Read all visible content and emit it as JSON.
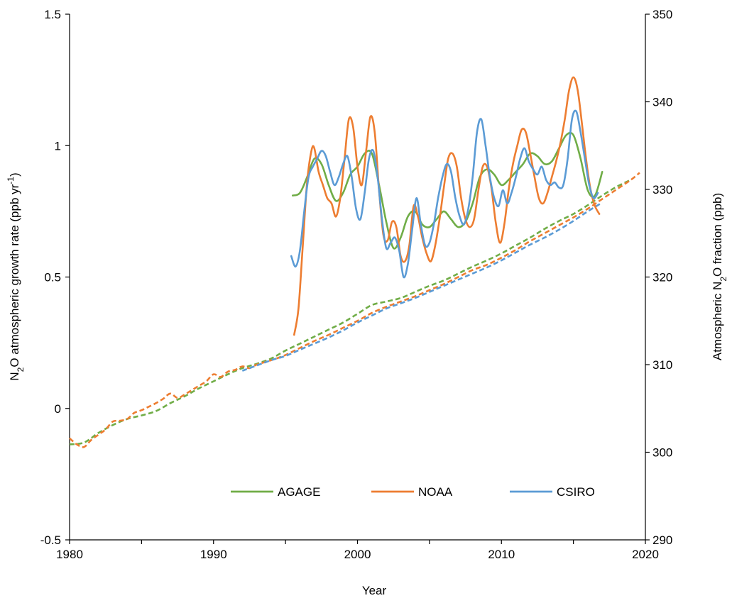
{
  "chart_data": {
    "type": "line",
    "xlabel": "Year",
    "ylabel_left": {
      "pre": "N",
      "sub": "2",
      "mid": "O atmospheric growth rate (ppb yr",
      "sup": "-1",
      "post": ")"
    },
    "ylabel_right": {
      "pre": "Atmospheric N",
      "sub": "2",
      "post": "O fraction (ppb)"
    },
    "xlim": [
      1980,
      2020
    ],
    "ylim_left": [
      -0.5,
      1.5
    ],
    "ylim_right": [
      290,
      350
    ],
    "xticks": [
      "1980",
      "1990",
      "2000",
      "2010",
      "2020"
    ],
    "yticks_left": [
      "-0.5",
      "0",
      "0.5",
      "1",
      "1.5"
    ],
    "yticks_right": [
      "290",
      "300",
      "310",
      "320",
      "330",
      "340",
      "350"
    ],
    "grid": false,
    "legend_position": "bottom-center",
    "legend": [
      "AGAGE",
      "NOAA",
      "CSIRO"
    ],
    "colors": {
      "AGAGE": "#70ad47",
      "NOAA": "#ed7d31",
      "CSIRO": "#5b9bd5"
    },
    "series": [
      {
        "name": "AGAGE",
        "kind": "growth rate (solid, left axis)",
        "x": [
          1995.5,
          1996,
          1996.5,
          1997,
          1997.5,
          1998,
          1998.5,
          1999,
          1999.5,
          2000,
          2000.5,
          2001,
          2001.5,
          2002,
          2002.5,
          2003,
          2003.5,
          2004,
          2004.5,
          2005,
          2005.5,
          2006,
          2006.5,
          2007,
          2007.5,
          2008,
          2008.5,
          2009,
          2009.5,
          2010,
          2010.5,
          2011,
          2011.5,
          2012,
          2012.5,
          2013,
          2013.5,
          2014,
          2014.5,
          2015,
          2015.5,
          2016,
          2016.5,
          2017
        ],
        "y": [
          0.81,
          0.82,
          0.88,
          0.95,
          0.93,
          0.85,
          0.79,
          0.82,
          0.89,
          0.92,
          0.97,
          0.97,
          0.85,
          0.71,
          0.61,
          0.65,
          0.73,
          0.75,
          0.7,
          0.69,
          0.72,
          0.75,
          0.72,
          0.69,
          0.71,
          0.78,
          0.88,
          0.91,
          0.89,
          0.85,
          0.87,
          0.9,
          0.93,
          0.97,
          0.96,
          0.93,
          0.94,
          0.99,
          1.04,
          1.04,
          0.95,
          0.83,
          0.81,
          0.9
        ]
      },
      {
        "name": "NOAA",
        "kind": "growth rate (solid, left axis)",
        "x": [
          1995.6,
          1995.9,
          1996.2,
          1996.5,
          1996.8,
          1997,
          1997.3,
          1997.6,
          1997.9,
          1998.2,
          1998.5,
          1998.8,
          1999.1,
          1999.4,
          1999.7,
          2000,
          2000.3,
          2000.6,
          2000.9,
          2001.2,
          2001.5,
          2001.8,
          2002.1,
          2002.4,
          2002.7,
          2003,
          2003.3,
          2003.6,
          2003.9,
          2004.2,
          2004.5,
          2004.8,
          2005.1,
          2005.4,
          2005.7,
          2006,
          2006.3,
          2006.6,
          2006.9,
          2007.2,
          2007.5,
          2007.8,
          2008.1,
          2008.4,
          2008.7,
          2009,
          2009.3,
          2009.6,
          2009.9,
          2010.2,
          2010.5,
          2010.8,
          2011.1,
          2011.4,
          2011.7,
          2012,
          2012.3,
          2012.6,
          2012.9,
          2013.2,
          2013.5,
          2013.8,
          2014.1,
          2014.4,
          2014.7,
          2015,
          2015.3,
          2015.6,
          2015.9,
          2016.2,
          2016.5,
          2016.8
        ],
        "y": [
          0.28,
          0.38,
          0.62,
          0.86,
          0.98,
          0.99,
          0.9,
          0.85,
          0.8,
          0.78,
          0.73,
          0.8,
          0.95,
          1.1,
          1.07,
          0.92,
          0.85,
          0.98,
          1.11,
          1.05,
          0.83,
          0.66,
          0.64,
          0.71,
          0.69,
          0.58,
          0.56,
          0.62,
          0.77,
          0.73,
          0.65,
          0.59,
          0.56,
          0.62,
          0.72,
          0.84,
          0.95,
          0.97,
          0.92,
          0.8,
          0.72,
          0.69,
          0.72,
          0.83,
          0.92,
          0.92,
          0.84,
          0.71,
          0.63,
          0.7,
          0.83,
          0.93,
          1.0,
          1.06,
          1.05,
          0.97,
          0.88,
          0.8,
          0.78,
          0.82,
          0.88,
          0.94,
          1.01,
          1.1,
          1.21,
          1.26,
          1.21,
          1.08,
          0.94,
          0.83,
          0.77,
          0.74
        ]
      },
      {
        "name": "CSIRO",
        "kind": "growth rate (solid, left axis)",
        "x": [
          1995.4,
          1995.7,
          1996,
          1996.3,
          1996.6,
          1996.9,
          1997.2,
          1997.5,
          1997.8,
          1998.1,
          1998.4,
          1998.7,
          1999,
          1999.3,
          1999.6,
          1999.9,
          2000.2,
          2000.5,
          2000.8,
          2001.1,
          2001.4,
          2001.7,
          2002,
          2002.3,
          2002.6,
          2002.9,
          2003.2,
          2003.5,
          2003.8,
          2004.1,
          2004.4,
          2004.7,
          2005,
          2005.3,
          2005.6,
          2005.9,
          2006.2,
          2006.5,
          2006.8,
          2007.1,
          2007.4,
          2007.7,
          2008,
          2008.3,
          2008.6,
          2008.9,
          2009.2,
          2009.5,
          2009.8,
          2010.1,
          2010.4,
          2010.7,
          2011,
          2011.3,
          2011.6,
          2011.9,
          2012.2,
          2012.5,
          2012.8,
          2013.1,
          2013.4,
          2013.7,
          2014,
          2014.3,
          2014.6,
          2014.9,
          2015.2,
          2015.5,
          2015.8,
          2016.1,
          2016.4,
          2016.7
        ],
        "y": [
          0.58,
          0.54,
          0.6,
          0.75,
          0.88,
          0.92,
          0.95,
          0.98,
          0.96,
          0.9,
          0.85,
          0.88,
          0.93,
          0.96,
          0.88,
          0.76,
          0.72,
          0.82,
          0.95,
          0.98,
          0.88,
          0.72,
          0.61,
          0.63,
          0.65,
          0.6,
          0.5,
          0.55,
          0.68,
          0.8,
          0.7,
          0.62,
          0.63,
          0.7,
          0.8,
          0.88,
          0.93,
          0.9,
          0.8,
          0.73,
          0.7,
          0.76,
          0.88,
          1.05,
          1.1,
          1.0,
          0.88,
          0.8,
          0.77,
          0.83,
          0.78,
          0.82,
          0.88,
          0.95,
          0.99,
          0.94,
          0.91,
          0.89,
          0.92,
          0.87,
          0.85,
          0.86,
          0.84,
          0.85,
          0.95,
          1.1,
          1.13,
          1.05,
          0.95,
          0.85,
          0.8,
          0.82
        ]
      },
      {
        "name": "AGAGE",
        "kind": "mole fraction (dashed, right axis)",
        "x": [
          1980,
          1981,
          1982,
          1983,
          1984,
          1985,
          1986,
          1987,
          1988,
          1989,
          1990,
          1991,
          1992,
          1993,
          1994,
          1995,
          1996,
          1997,
          1998,
          1999,
          2000,
          2001,
          2002,
          2003,
          2004,
          2005,
          2006,
          2007,
          2008,
          2009,
          2010,
          2011,
          2012,
          2013,
          2014,
          2015,
          2016,
          2017,
          2018,
          2019
        ],
        "y": [
          300.9,
          301.1,
          302.2,
          303.1,
          303.8,
          304.2,
          304.7,
          305.6,
          306.4,
          307.3,
          308.1,
          308.9,
          309.6,
          310.1,
          310.7,
          311.6,
          312.4,
          313.2,
          314.0,
          314.8,
          315.8,
          316.8,
          317.2,
          317.6,
          318.3,
          319.0,
          319.6,
          320.4,
          321.2,
          321.9,
          322.7,
          323.6,
          324.5,
          325.5,
          326.4,
          327.2,
          328.2,
          329.3,
          330.3,
          331.1
        ]
      },
      {
        "name": "NOAA",
        "kind": "mole fraction (dashed, right axis)",
        "x": [
          1980,
          1980.5,
          1981,
          1981.5,
          1982,
          1982.5,
          1983,
          1983.5,
          1984,
          1984.5,
          1985,
          1985.5,
          1986,
          1986.5,
          1987,
          1987.5,
          1988,
          1988.5,
          1989,
          1989.5,
          1990,
          1990.5,
          1991,
          1991.5,
          1992,
          1992.5,
          1993,
          1994,
          1995,
          1996,
          1997,
          1998,
          1999,
          2000,
          2001,
          2002,
          2003,
          2004,
          2005,
          2006,
          2007,
          2008,
          2009,
          2010,
          2011,
          2012,
          2013,
          2014,
          2015,
          2016,
          2017,
          2018,
          2019,
          2019.6
        ],
        "y": [
          301.6,
          300.9,
          300.6,
          301.4,
          302.0,
          302.6,
          303.5,
          303.6,
          303.8,
          304.5,
          304.8,
          305.2,
          305.6,
          306.1,
          306.7,
          306.2,
          306.6,
          307.1,
          307.6,
          308.1,
          308.9,
          308.6,
          309.2,
          309.4,
          309.8,
          309.6,
          310.0,
          310.5,
          311.1,
          311.9,
          312.7,
          313.4,
          314.2,
          315.0,
          315.9,
          316.6,
          317.2,
          317.8,
          318.5,
          319.2,
          320.0,
          320.8,
          321.4,
          322.2,
          323.1,
          324.1,
          325.0,
          325.9,
          326.8,
          327.8,
          328.9,
          330.0,
          331.1,
          331.9
        ]
      },
      {
        "name": "CSIRO",
        "kind": "mole fraction (dashed, right axis)",
        "x": [
          1992,
          1993,
          1994,
          1995,
          1996,
          1997,
          1998,
          1999,
          2000,
          2001,
          2002,
          2003,
          2004,
          2005,
          2006,
          2007,
          2008,
          2009,
          2010,
          2011,
          2012,
          2013,
          2014,
          2015,
          2016,
          2017
        ],
        "y": [
          309.3,
          309.9,
          310.5,
          311.0,
          311.7,
          312.4,
          313.1,
          313.9,
          314.8,
          315.6,
          316.4,
          317.0,
          317.6,
          318.3,
          319.0,
          319.7,
          320.4,
          321.1,
          321.9,
          322.8,
          323.7,
          324.5,
          325.4,
          326.4,
          327.5,
          328.5
        ]
      }
    ]
  }
}
